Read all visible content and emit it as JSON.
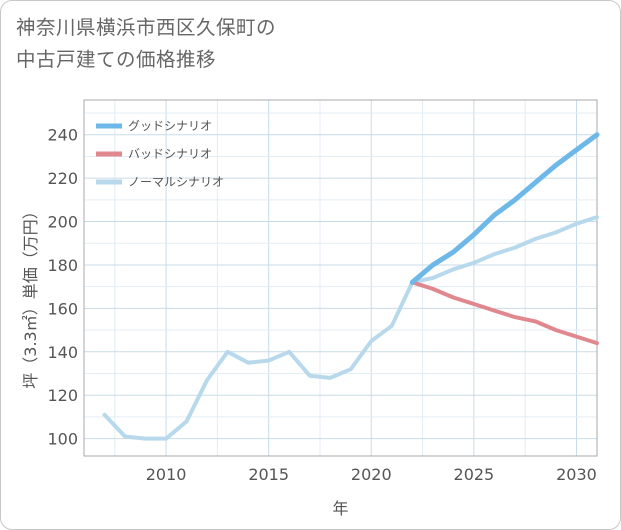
{
  "title_line1": "神奈川県横浜市西区久保町の",
  "title_line2": "中古戸建ての価格推移",
  "chart_data": {
    "type": "line",
    "xlabel": "年",
    "ylabel": "坪（3.3㎡）単価（万円）",
    "xlim": [
      2006,
      2031
    ],
    "ylim": [
      92,
      256
    ],
    "xticks": [
      2010,
      2015,
      2020,
      2025,
      2030
    ],
    "yticks": [
      100,
      120,
      140,
      160,
      180,
      200,
      220,
      240
    ],
    "grid": true,
    "legend_position": "top-left",
    "series": [
      {
        "name": "グッドシナリオ",
        "color": "#6db8e8",
        "x": [
          2022,
          2023,
          2024,
          2025,
          2026,
          2027,
          2028,
          2029,
          2030,
          2031
        ],
        "values": [
          172,
          180,
          186,
          194,
          203,
          210,
          218,
          226,
          233,
          240
        ]
      },
      {
        "name": "バッドシナリオ",
        "color": "#e0888e",
        "x": [
          2022,
          2023,
          2024,
          2025,
          2026,
          2027,
          2028,
          2029,
          2030,
          2031
        ],
        "values": [
          172,
          169,
          165,
          162,
          159,
          156,
          154,
          150,
          147,
          144
        ]
      },
      {
        "name": "ノーマルシナリオ",
        "color": "#b8d9ec",
        "x": [
          2007,
          2008,
          2009,
          2010,
          2011,
          2012,
          2013,
          2014,
          2015,
          2016,
          2017,
          2018,
          2019,
          2020,
          2021,
          2022,
          2023,
          2024,
          2025,
          2026,
          2027,
          2028,
          2029,
          2030,
          2031
        ],
        "values": [
          111,
          101,
          100,
          100,
          108,
          127,
          140,
          135,
          136,
          140,
          129,
          128,
          132,
          145,
          152,
          172,
          174,
          178,
          181,
          185,
          188,
          192,
          195,
          199,
          202
        ]
      }
    ]
  }
}
